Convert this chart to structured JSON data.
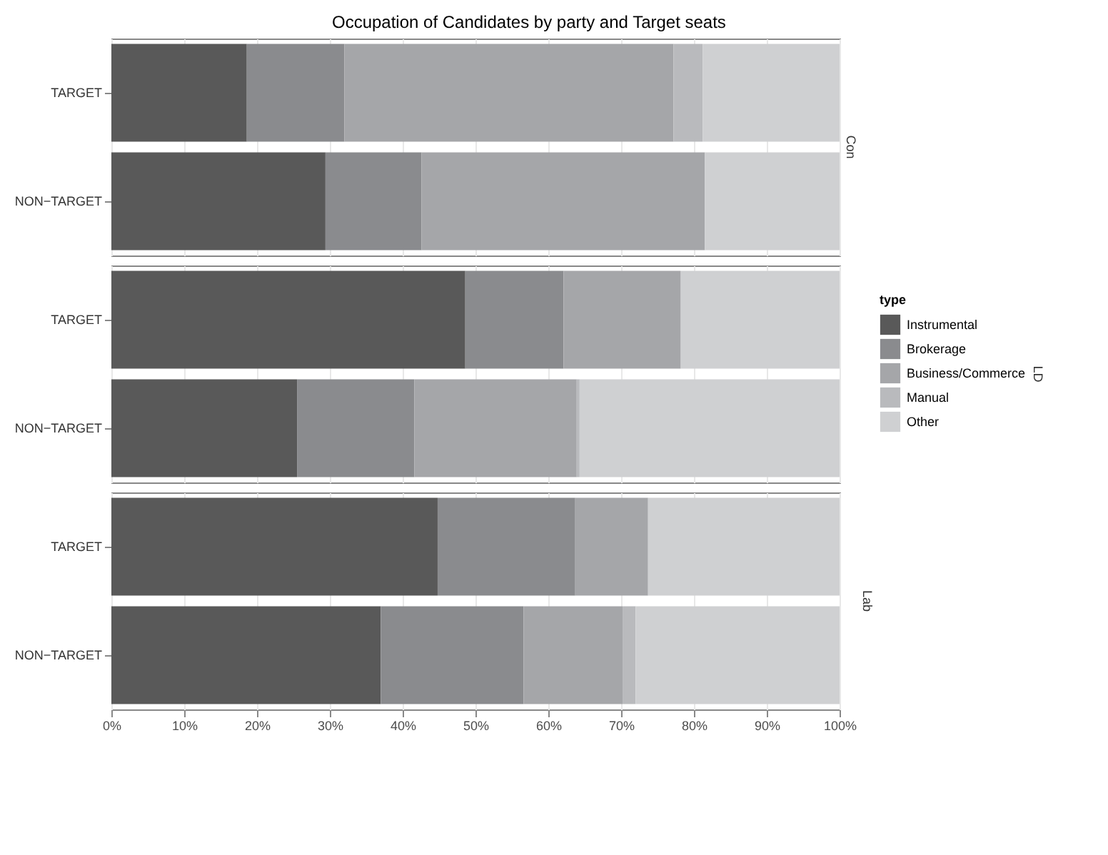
{
  "chart_data": [
    {
      "type": "bar",
      "orientation": "horizontal",
      "stacked": true,
      "title": "Occupation of Candidates by party and Target seats",
      "y2label": "Con",
      "categories": [
        "TARGET",
        "NON−TARGET"
      ],
      "series": [
        {
          "color": "#595959",
          "values": [
            18.6,
            29.4
          ]
        },
        {
          "color": "#8a8b8e",
          "values": [
            13.4,
            13.2
          ]
        },
        {
          "color": "#a5a6a9",
          "values": [
            45.2,
            38.9
          ]
        },
        {
          "color": "#b9babd",
          "values": [
            4.0,
            0
          ]
        },
        {
          "color": "#cfd0d2",
          "values": [
            18.8,
            18.5
          ]
        }
      ],
      "xlim": [
        0,
        100
      ],
      "xticks": [
        {
          "value": 0,
          "label": null
        },
        {
          "value": 10,
          "label": null
        },
        {
          "value": 20,
          "label": null
        },
        {
          "value": 30,
          "label": null
        },
        {
          "value": 40,
          "label": null
        },
        {
          "value": 50,
          "label": null
        },
        {
          "value": 60,
          "label": null
        },
        {
          "value": 70,
          "label": null
        },
        {
          "value": 80,
          "label": null
        },
        {
          "value": 90,
          "label": null
        },
        {
          "value": 100,
          "label": null
        }
      ],
      "tick_labels": "y",
      "grid": "x",
      "legend": false
    },
    {
      "type": "bar",
      "orientation": "horizontal",
      "stacked": true,
      "y2label": "LD",
      "legend_title": "type",
      "categories": [
        "TARGET",
        "NON−TARGET"
      ],
      "series": [
        {
          "name": "Instrumental",
          "color": "#595959",
          "values": [
            48.6,
            25.5
          ]
        },
        {
          "name": "Brokerage",
          "color": "#8a8b8e",
          "values": [
            13.5,
            16.1
          ]
        },
        {
          "name": "Business/Commerce",
          "color": "#a5a6a9",
          "values": [
            16.1,
            22.3
          ]
        },
        {
          "name": "Manual",
          "color": "#b9babd",
          "values": [
            0,
            0.4
          ]
        },
        {
          "name": "Other",
          "color": "#cfd0d2",
          "values": [
            21.8,
            35.7
          ]
        }
      ],
      "xlim": [
        0,
        100
      ],
      "xticks": [
        {
          "value": 0,
          "label": null
        },
        {
          "value": 10,
          "label": null
        },
        {
          "value": 20,
          "label": null
        },
        {
          "value": 30,
          "label": null
        },
        {
          "value": 40,
          "label": null
        },
        {
          "value": 50,
          "label": null
        },
        {
          "value": 60,
          "label": null
        },
        {
          "value": 70,
          "label": null
        },
        {
          "value": 80,
          "label": null
        },
        {
          "value": 90,
          "label": null
        },
        {
          "value": 100,
          "label": null
        }
      ],
      "tick_labels": "y",
      "grid": "x",
      "legend": "right"
    },
    {
      "type": "bar",
      "orientation": "horizontal",
      "stacked": true,
      "y2label": "Lab",
      "categories": [
        "TARGET",
        "NON−TARGET"
      ],
      "series": [
        {
          "color": "#595959",
          "values": [
            44.8,
            37.0
          ]
        },
        {
          "color": "#8a8b8e",
          "values": [
            18.9,
            19.6
          ]
        },
        {
          "color": "#a5a6a9",
          "values": [
            10.0,
            13.6
          ]
        },
        {
          "color": "#b9babd",
          "values": [
            0,
            1.8
          ]
        },
        {
          "color": "#cfd0d2",
          "values": [
            26.3,
            28.0
          ]
        }
      ],
      "xlim": [
        0,
        100
      ],
      "xticks": [
        {
          "value": 0,
          "label": "0%"
        },
        {
          "value": 10,
          "label": "10%"
        },
        {
          "value": 20,
          "label": "20%"
        },
        {
          "value": 30,
          "label": "30%"
        },
        {
          "value": 40,
          "label": "40%"
        },
        {
          "value": 50,
          "label": "50%"
        },
        {
          "value": 60,
          "label": "60%"
        },
        {
          "value": 70,
          "label": "70%"
        },
        {
          "value": 80,
          "label": "80%"
        },
        {
          "value": 90,
          "label": "90%"
        },
        {
          "value": 100,
          "label": "100%"
        }
      ],
      "grid": "x",
      "legend": false
    }
  ]
}
